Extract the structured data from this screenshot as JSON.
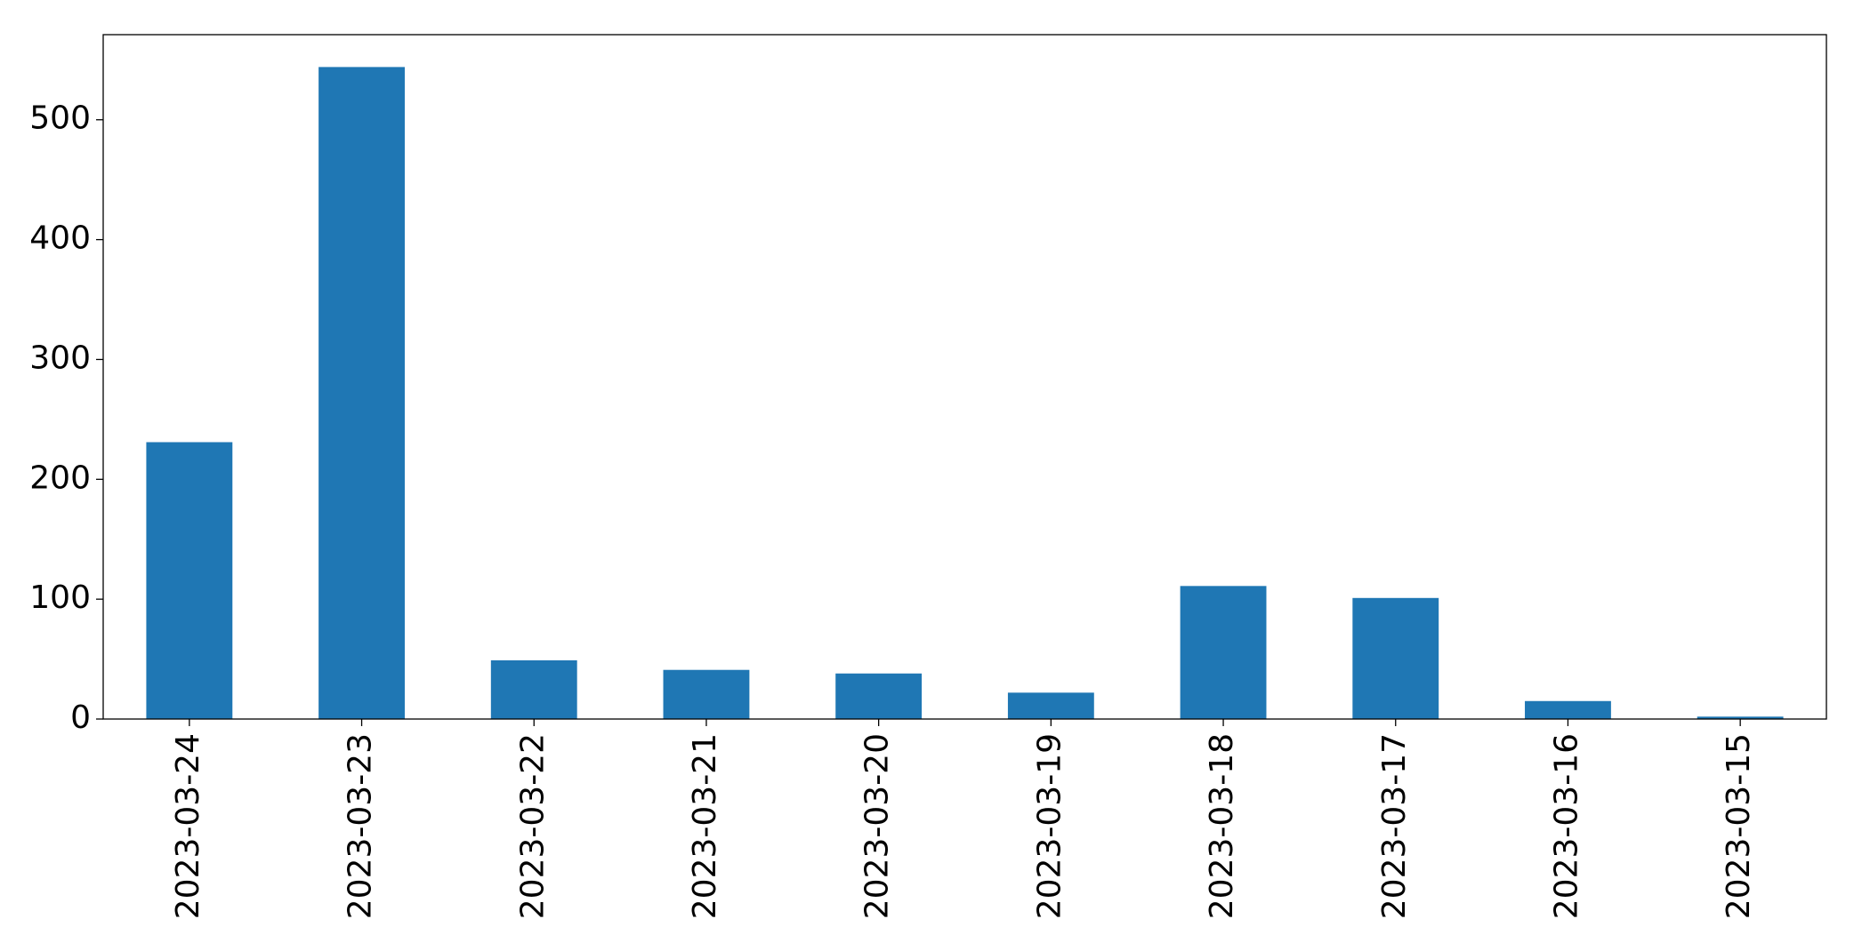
{
  "chart_data": {
    "type": "bar",
    "categories": [
      "2023-03-24",
      "2023-03-23",
      "2023-03-22",
      "2023-03-21",
      "2023-03-20",
      "2023-03-19",
      "2023-03-18",
      "2023-03-17",
      "2023-03-16",
      "2023-03-15"
    ],
    "values": [
      231,
      544,
      49,
      41,
      38,
      22,
      111,
      101,
      15,
      2
    ],
    "color": "#1f77b4",
    "ylim": [
      0,
      571
    ],
    "yticks": [
      0,
      100,
      200,
      300,
      400,
      500
    ],
    "grid": false
  }
}
